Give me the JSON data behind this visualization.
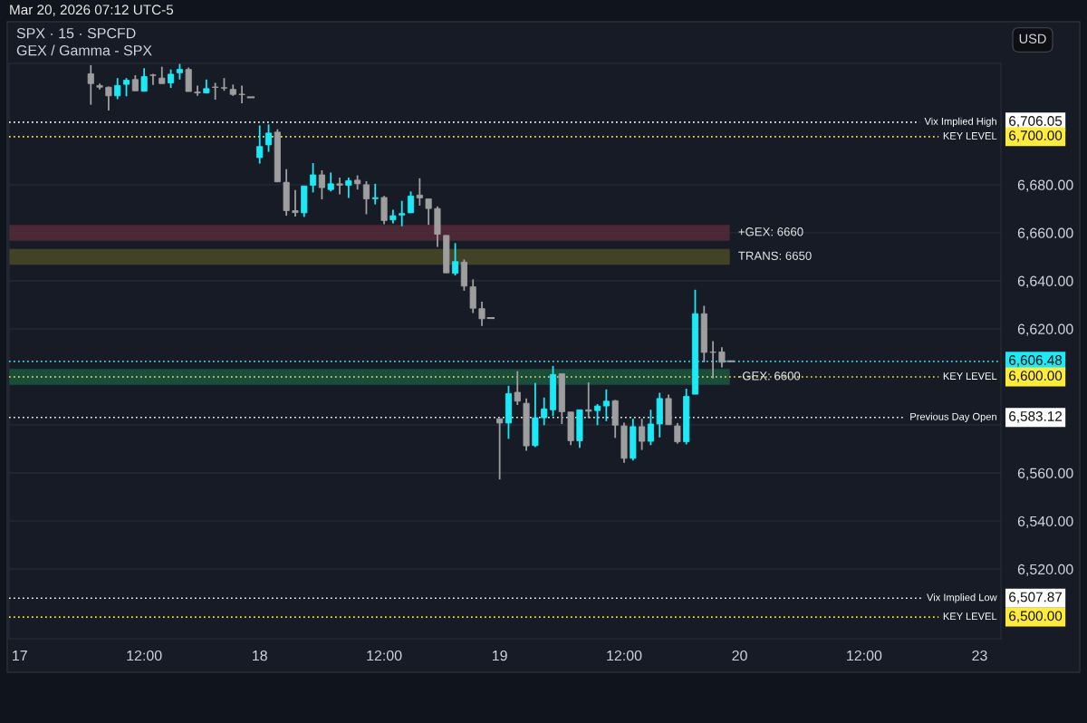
{
  "chart_data": {
    "type": "candlestick",
    "title": "SPX · 15 · SPCFD",
    "subtitle": "GEX / Gamma - SPX",
    "annotations": [
      "Mar 20, 2026 07:12 UTC-5",
      "USD",
      "6,706.05",
      "6,700.00",
      "6,606.48",
      "6,600.00",
      "6,583.12",
      "6,507.87",
      "6,500.00"
    ],
    "categories": [
      "17",
      null,
      null,
      null,
      null,
      null,
      null,
      null,
      null,
      null,
      null,
      null,
      null,
      null,
      "12:00",
      null,
      null,
      null,
      null,
      null,
      null,
      null,
      null,
      null,
      null,
      null,
      null,
      "18",
      null,
      null,
      null,
      null,
      null,
      null,
      null,
      null,
      null,
      null,
      null,
      null,
      null,
      "12:00",
      null,
      null,
      null,
      null,
      null,
      null,
      null,
      null,
      null,
      null,
      null,
      null,
      "19",
      null,
      null,
      null,
      null,
      null,
      null,
      null,
      null,
      null,
      null,
      null,
      null,
      null,
      "12:00",
      null,
      null,
      null,
      null,
      null,
      null,
      null,
      null,
      null,
      null,
      null,
      null,
      "20",
      null,
      null,
      null,
      null,
      null,
      null,
      null,
      null,
      null,
      null,
      null,
      null,
      null,
      "12:00",
      null,
      null,
      null,
      null,
      null,
      null,
      null,
      null,
      null,
      null,
      null,
      null,
      "23",
      null,
      null
    ],
    "ohlc": [
      null,
      null,
      null,
      null,
      null,
      null,
      null,
      null,
      [
        6726.2,
        6729.8,
        6713.3,
        6722.1
      ],
      [
        6721.3,
        6722.1,
        6719.7,
        6720.6
      ],
      [
        6720.6,
        6720.9,
        6710.9,
        6717.0
      ],
      [
        6717.0,
        6724.4,
        6715.6,
        6721.3
      ],
      [
        6721.8,
        6724.4,
        6716.8,
        6723.5
      ],
      [
        6723.8,
        6725.6,
        6719.1,
        6719.1
      ],
      [
        6718.9,
        6728.5,
        6718.9,
        6725.0
      ],
      [
        6725.7,
        6726.2,
        6721.5,
        6725.5
      ],
      [
        6724.4,
        6729.1,
        6722.1,
        6722.1
      ],
      [
        6722.4,
        6728.0,
        6720.3,
        6726.0
      ],
      [
        6726.6,
        6730.3,
        6723.8,
        6728.0
      ],
      [
        6728.0,
        6728.8,
        6718.8,
        6718.8
      ],
      [
        6718.6,
        6721.3,
        6717.0,
        6718.2
      ],
      [
        6718.2,
        6723.8,
        6718.2,
        6720.0
      ],
      [
        6720.7,
        6722.4,
        6715.4,
        6720.5
      ],
      [
        6720.4,
        6724.4,
        6719.1,
        6720.2
      ],
      [
        6719.7,
        6721.7,
        6717.0,
        6717.6
      ],
      [
        6717.7,
        6721.3,
        6713.9,
        6717.5
      ],
      [
        6716.4,
        6716.4,
        6716.4,
        6716.4
      ],
      [
        6691.3,
        6704.7,
        6688.8,
        6695.9
      ],
      [
        6696.6,
        6705.1,
        6693.7,
        6701.5
      ],
      [
        6701.9,
        6703.1,
        6681.2,
        6681.2
      ],
      [
        6681.0,
        6686.5,
        6667.1,
        6669.2
      ],
      [
        6669.2,
        6677.8,
        6666.8,
        6668.4
      ],
      [
        6668.3,
        6679.5,
        6666.6,
        6679.5
      ],
      [
        6679.8,
        6689.0,
        6676.8,
        6684.1
      ],
      [
        6684.1,
        6686.0,
        6673.9,
        6678.8
      ],
      [
        6678.0,
        6685.1,
        6677.2,
        6680.4
      ],
      [
        6680.4,
        6683.0,
        6676.0,
        6679.8
      ],
      [
        6679.8,
        6683.0,
        6674.5,
        6681.7
      ],
      [
        6681.9,
        6683.9,
        6678.0,
        6680.4
      ],
      [
        6680.0,
        6681.5,
        6667.7,
        6674.1
      ],
      [
        6674.2,
        6680.4,
        6671.8,
        6674.6
      ],
      [
        6674.7,
        6675.3,
        6663.6,
        6665.1
      ],
      [
        6665.4,
        6669.6,
        6663.9,
        6667.1
      ],
      [
        6667.4,
        6673.3,
        6662.7,
        6668.0
      ],
      [
        6668.3,
        6677.2,
        6668.3,
        6675.3
      ],
      [
        6675.7,
        6682.7,
        6671.3,
        6674.5
      ],
      [
        6674.1,
        6674.1,
        6663.3,
        6670.1
      ],
      [
        6670.1,
        6671.0,
        6654.1,
        6659.4
      ],
      [
        6658.9,
        6658.9,
        6643.3,
        6643.3
      ],
      [
        6643.1,
        6655.7,
        6642.2,
        6648.0
      ],
      [
        6647.8,
        6648.9,
        6635.9,
        6637.8
      ],
      [
        6637.5,
        6640.6,
        6626.6,
        6628.6
      ],
      [
        6628.4,
        6631.3,
        6621.2,
        6624.2
      ],
      [
        6624.5,
        6624.5,
        6624.5,
        6624.5
      ],
      [
        6582.6,
        6582.6,
        6557.3,
        6580.8
      ],
      [
        6580.8,
        6596.3,
        6574.2,
        6593.0
      ],
      [
        6593.6,
        6602.4,
        6588.3,
        6589.9
      ],
      [
        6589.0,
        6591.0,
        6569.3,
        6571.3
      ],
      [
        6571.4,
        6597.5,
        6570.8,
        6583.0
      ],
      [
        6583.0,
        6591.4,
        6579.9,
        6586.7
      ],
      [
        6586.3,
        6604.6,
        6583.7,
        6601.0
      ],
      [
        6601.3,
        6601.3,
        6580.4,
        6585.5
      ],
      [
        6585.4,
        6585.4,
        6571.6,
        6573.4
      ],
      [
        6573.4,
        6586.3,
        6570.5,
        6586.3
      ],
      [
        6586.3,
        6597.7,
        6582.8,
        6585.7
      ],
      [
        6586.0,
        6588.7,
        6579.9,
        6587.9
      ],
      [
        6587.9,
        6594.8,
        6581.6,
        6589.9
      ],
      [
        6590.1,
        6590.4,
        6574.6,
        6579.9
      ],
      [
        6579.6,
        6581.0,
        6564.3,
        6566.1
      ],
      [
        6566.1,
        6582.6,
        6565.2,
        6579.3
      ],
      [
        6579.3,
        6582.6,
        6569.6,
        6573.2
      ],
      [
        6573.2,
        6586.3,
        6571.6,
        6580.4
      ],
      [
        6580.4,
        6593.4,
        6574.8,
        6591.0
      ],
      [
        6591.0,
        6592.6,
        6580.1,
        6580.1
      ],
      [
        6579.6,
        6580.8,
        6572.2,
        6573.0
      ],
      [
        6573.0,
        6595.1,
        6571.9,
        6591.9
      ],
      [
        6592.8,
        6636.3,
        6592.8,
        6626.3
      ],
      [
        6626.3,
        6629.6,
        6606.1,
        6610.2
      ],
      [
        6610.4,
        6614.9,
        6599.3,
        6610.2
      ],
      [
        6610.4,
        6612.4,
        6604.0,
        6606.1
      ],
      [
        6606.5,
        6606.5,
        6606.5,
        6606.5
      ],
      null,
      null,
      null,
      null,
      null,
      null,
      null,
      null,
      null,
      null,
      null,
      null,
      null,
      null,
      null,
      null,
      null,
      null,
      null,
      null,
      null,
      null,
      null,
      null,
      null,
      null,
      null,
      null,
      null,
      null
    ],
    "colors": [
      null,
      null,
      null,
      null,
      null,
      null,
      null,
      null,
      "#9e9e9e",
      "#9e9e9e",
      "#9e9e9e",
      "#1de9f6",
      "#1de9f6",
      "#9e9e9e",
      "#1de9f6",
      "#9e9e9e",
      "#9e9e9e",
      "#1de9f6",
      "#1de9f6",
      "#9e9e9e",
      "#9e9e9e",
      "#1de9f6",
      "#9e9e9e",
      "#9e9e9e",
      "#9e9e9e",
      "#9e9e9e",
      "#9e9e9e",
      "#1de9f6",
      "#1de9f6",
      "#9e9e9e",
      "#9e9e9e",
      "#9e9e9e",
      "#1de9f6",
      "#1de9f6",
      "#9e9e9e",
      "#1de9f6",
      "#9e9e9e",
      "#1de9f6",
      "#9e9e9e",
      "#9e9e9e",
      "#1de9f6",
      "#9e9e9e",
      "#1de9f6",
      "#1de9f6",
      "#1de9f6",
      "#9e9e9e",
      "#9e9e9e",
      "#9e9e9e",
      "#9e9e9e",
      "#1de9f6",
      "#9e9e9e",
      "#9e9e9e",
      "#9e9e9e",
      "#9e9e9e",
      "#9e9e9e",
      "#1de9f6",
      "#9e9e9e",
      "#9e9e9e",
      "#1de9f6",
      "#1de9f6",
      "#1de9f6",
      "#9e9e9e",
      "#9e9e9e",
      "#1de9f6",
      "#9e9e9e",
      "#1de9f6",
      "#1de9f6",
      "#9e9e9e",
      "#9e9e9e",
      "#1de9f6",
      "#9e9e9e",
      "#1de9f6",
      "#1de9f6",
      "#9e9e9e",
      "#9e9e9e",
      "#1de9f6",
      "#1de9f6",
      "#9e9e9e",
      "#9e9e9e",
      "#9e9e9e",
      "#9e9e9e",
      null,
      null,
      null,
      null,
      null,
      null,
      null,
      null,
      null,
      null,
      null,
      null,
      null,
      null,
      null,
      null,
      null,
      null,
      null,
      null,
      null,
      null,
      null,
      null,
      null,
      null,
      null,
      null,
      null,
      null
    ],
    "ylim": [
      6491,
      6730.5
    ],
    "yticks": [
      {
        "value": 6520,
        "label": "6,520.00"
      },
      {
        "value": 6540,
        "label": "6,540.00"
      },
      {
        "value": 6560,
        "label": "6,560.00"
      },
      {
        "value": 6580,
        "label": null
      },
      {
        "value": 6620,
        "label": "6,620.00"
      },
      {
        "value": 6640,
        "label": "6,640.00"
      },
      {
        "value": 6660,
        "label": "6,660.00"
      },
      {
        "value": 6680,
        "label": "6,680.00"
      }
    ],
    "grid": "y",
    "ref_lines": [
      {
        "axis": "y",
        "value": 6706.05,
        "label": "Vix Implied High",
        "color": "#ffffff",
        "line_style": "dotted"
      },
      {
        "axis": "y",
        "value": 6700,
        "label": "KEY LEVEL",
        "color": "#ffeb3b",
        "line_style": "dotted"
      },
      {
        "axis": "y",
        "value": 6606.48,
        "color": "#1de9f6",
        "line_style": "dotted"
      },
      {
        "axis": "y",
        "value": 6600,
        "label": "KEY LEVEL",
        "color": "#ffeb3b",
        "line_style": "dotted"
      },
      {
        "axis": "y",
        "value": 6583.12,
        "label": "Previous Day Open",
        "color": "#ffffff",
        "line_style": "dotted"
      },
      {
        "axis": "y",
        "value": 6507.87,
        "label": "Vix Implied Low",
        "color": "#ffffff",
        "line_style": "dotted"
      },
      {
        "axis": "y",
        "value": 6500,
        "label": "KEY LEVEL",
        "color": "#ffeb3b",
        "line_style": "dotted"
      }
    ],
    "bands": [
      {
        "axis": "y",
        "from": 6657,
        "to": 6663,
        "label": "+GEX: 6660",
        "color": "#5a2a3a"
      },
      {
        "axis": "y",
        "from": 6647,
        "to": 6653,
        "label": "TRANS: 6650",
        "color": "#4e4c28"
      },
      {
        "axis": "y",
        "from": 6597,
        "to": 6603,
        "label": "-GEX: 6600",
        "color": "#1d5a42"
      }
    ]
  }
}
